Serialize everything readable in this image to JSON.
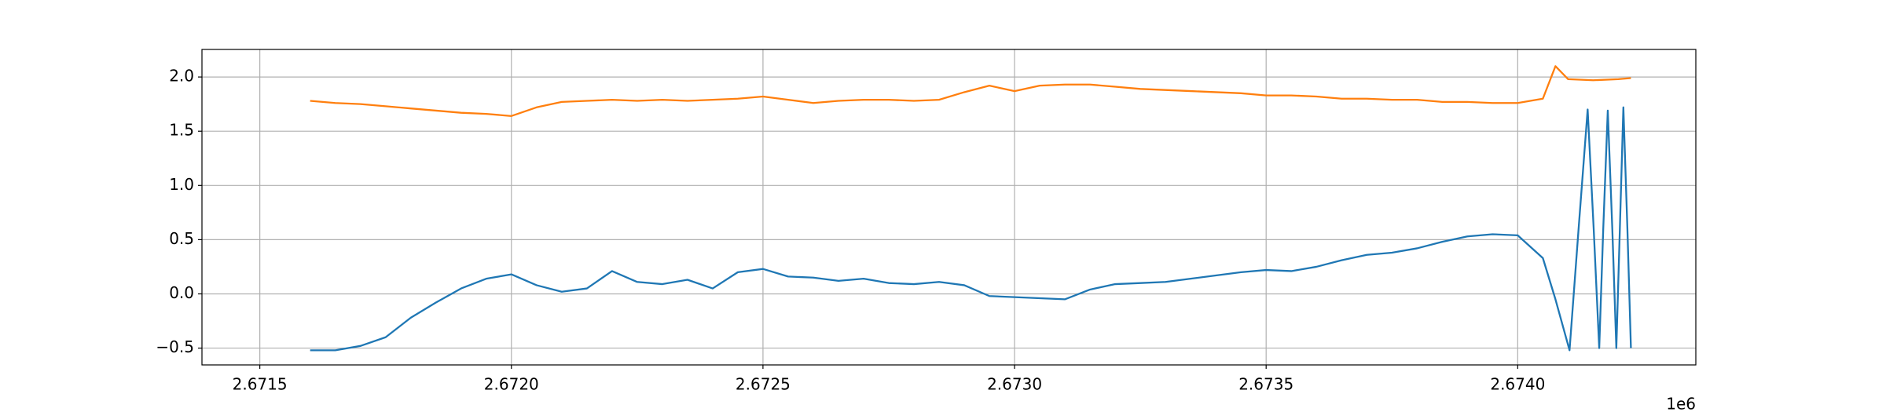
{
  "chart_data": {
    "type": "line",
    "x_offset_label": "1e6",
    "xlim": [
      2671385,
      2674354
    ],
    "ylim": [
      -0.655,
      2.254
    ],
    "xticks": [
      {
        "value": 2671500,
        "label": "2.6715"
      },
      {
        "value": 2672000,
        "label": "2.6720"
      },
      {
        "value": 2672500,
        "label": "2.6725"
      },
      {
        "value": 2673000,
        "label": "2.6730"
      },
      {
        "value": 2673500,
        "label": "2.6735"
      },
      {
        "value": 2674000,
        "label": "2.6740"
      }
    ],
    "yticks": [
      {
        "value": -0.5,
        "label": "−0.5"
      },
      {
        "value": 0,
        "label": "0.0"
      },
      {
        "value": 0.5,
        "label": "0.5"
      },
      {
        "value": 1,
        "label": "1.0"
      },
      {
        "value": 1.5,
        "label": "1.5"
      },
      {
        "value": 2,
        "label": "2.0"
      }
    ],
    "grid": true,
    "series": [
      {
        "color": "#1f77b4",
        "x": [
          2671600,
          2671650,
          2671700,
          2671750,
          2671800,
          2671850,
          2671900,
          2671950,
          2672000,
          2672050,
          2672100,
          2672150,
          2672200,
          2672250,
          2672300,
          2672350,
          2672400,
          2672450,
          2672500,
          2672550,
          2672600,
          2672650,
          2672700,
          2672750,
          2672800,
          2672850,
          2672900,
          2672950,
          2673000,
          2673050,
          2673100,
          2673150,
          2673200,
          2673250,
          2673300,
          2673350,
          2673400,
          2673450,
          2673500,
          2673550,
          2673600,
          2673650,
          2673700,
          2673750,
          2673800,
          2673850,
          2673900,
          2673950,
          2674000,
          2674050,
          2674075,
          2674103,
          2674121,
          2674139,
          2674151,
          2674162,
          2674170,
          2674179,
          2674188,
          2674196,
          2674203,
          2674210,
          2674218,
          2674225
        ],
        "values": [
          -0.52,
          -0.52,
          -0.48,
          -0.4,
          -0.22,
          -0.08,
          0.05,
          0.14,
          0.18,
          0.08,
          0.02,
          0.05,
          0.21,
          0.11,
          0.09,
          0.13,
          0.05,
          0.2,
          0.23,
          0.16,
          0.15,
          0.12,
          0.14,
          0.1,
          0.09,
          0.11,
          0.08,
          -0.02,
          -0.03,
          -0.04,
          -0.05,
          0.04,
          0.09,
          0.1,
          0.11,
          0.14,
          0.17,
          0.2,
          0.22,
          0.21,
          0.25,
          0.31,
          0.36,
          0.38,
          0.42,
          0.48,
          0.53,
          0.55,
          0.54,
          0.33,
          -0.05,
          -0.52,
          0.6,
          1.7,
          0.6,
          -0.5,
          0.6,
          1.69,
          0.6,
          -0.5,
          0.6,
          1.72,
          0.6,
          -0.5
        ]
      },
      {
        "color": "#ff7f0e",
        "x": [
          2671600,
          2671650,
          2671700,
          2671750,
          2671800,
          2671850,
          2671900,
          2671950,
          2672000,
          2672050,
          2672100,
          2672150,
          2672200,
          2672250,
          2672300,
          2672350,
          2672400,
          2672450,
          2672500,
          2672550,
          2672600,
          2672650,
          2672700,
          2672750,
          2672800,
          2672850,
          2672900,
          2672950,
          2673000,
          2673050,
          2673100,
          2673150,
          2673200,
          2673250,
          2673300,
          2673350,
          2673400,
          2673450,
          2673500,
          2673550,
          2673600,
          2673650,
          2673700,
          2673750,
          2673800,
          2673850,
          2673900,
          2673950,
          2674000,
          2674050,
          2674075,
          2674100,
          2674150,
          2674200,
          2674225
        ],
        "values": [
          1.78,
          1.76,
          1.75,
          1.73,
          1.71,
          1.69,
          1.67,
          1.66,
          1.64,
          1.72,
          1.77,
          1.78,
          1.79,
          1.78,
          1.79,
          1.78,
          1.79,
          1.8,
          1.82,
          1.79,
          1.76,
          1.78,
          1.79,
          1.79,
          1.78,
          1.79,
          1.86,
          1.92,
          1.87,
          1.92,
          1.93,
          1.93,
          1.91,
          1.89,
          1.88,
          1.87,
          1.86,
          1.85,
          1.83,
          1.83,
          1.82,
          1.8,
          1.8,
          1.79,
          1.79,
          1.77,
          1.77,
          1.76,
          1.76,
          1.8,
          2.1,
          1.98,
          1.97,
          1.98,
          1.99
        ]
      }
    ]
  }
}
